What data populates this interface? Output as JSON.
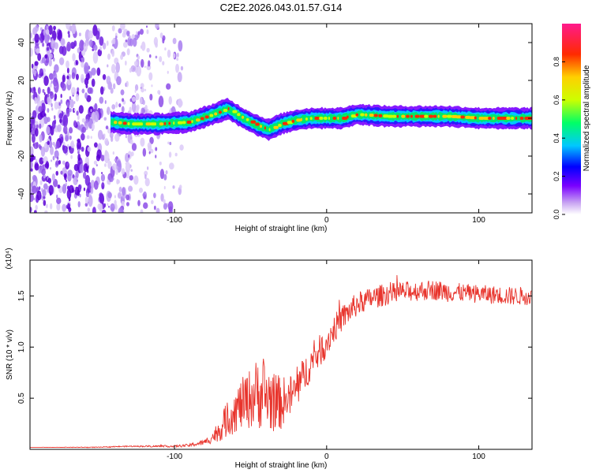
{
  "figure_title": "C2E2.2026.043.01.57.G14",
  "colorbar": {
    "label": "Normalized spectral amplitude",
    "ticks": [
      "0.0",
      "0.2",
      "0.4",
      "0.6",
      "0.8"
    ],
    "tick_values": [
      0.0,
      0.2,
      0.4,
      0.6,
      0.8
    ],
    "range": [
      0.0,
      1.0
    ]
  },
  "chart_data": [
    {
      "type": "heatmap",
      "title": "",
      "xlabel": "Height of straight line (km)",
      "ylabel": "Frequency (Hz)",
      "xlim": [
        -195,
        135
      ],
      "ylim": [
        -50,
        50
      ],
      "x_ticks": [
        "-100",
        "0",
        "100"
      ],
      "x_tick_values": [
        -100,
        0,
        100
      ],
      "y_ticks": [
        "-40",
        "-20",
        "0",
        "20",
        "40"
      ],
      "y_tick_values": [
        -40,
        -20,
        0,
        20,
        40
      ],
      "ridge": {
        "description_units": "frequency (Hz) of dominant band vs height (km)",
        "x": [
          -142,
          -130,
          -110,
          -90,
          -75,
          -65,
          -55,
          -45,
          -38,
          -30,
          -20,
          -10,
          0,
          10,
          20,
          40,
          60,
          80,
          100,
          120,
          135
        ],
        "y": [
          -2,
          -3,
          -3,
          -2,
          2,
          5,
          0,
          -4,
          -6,
          -3,
          -1,
          0,
          0,
          0,
          2,
          1,
          1,
          1,
          0,
          0,
          0
        ]
      },
      "noise_region_x": [
        -195,
        -95
      ]
    },
    {
      "type": "line",
      "title": "",
      "xlabel": "Height of straight line (km)",
      "ylabel": "SNR (10 * v/v)",
      "y_multiplier": "(x10⁴)",
      "xlim": [
        -195,
        135
      ],
      "ylim": [
        0,
        1.85
      ],
      "x_ticks": [
        "-100",
        "0",
        "100"
      ],
      "x_tick_values": [
        -100,
        0,
        100
      ],
      "y_ticks": [
        "0.5",
        "1.0",
        "1.5"
      ],
      "y_tick_values": [
        0.5,
        1.0,
        1.5
      ],
      "series": [
        {
          "name": "SNR",
          "color": "#e8342c",
          "x": [
            -195,
            -150,
            -130,
            -100,
            -90,
            -80,
            -75,
            -70,
            -65,
            -60,
            -55,
            -50,
            -45,
            -40,
            -35,
            -30,
            -25,
            -20,
            -15,
            -10,
            -5,
            0,
            5,
            10,
            15,
            20,
            25,
            30,
            35,
            40,
            45,
            50,
            60,
            70,
            80,
            90,
            100,
            110,
            120,
            135
          ],
          "y": [
            0.02,
            0.02,
            0.03,
            0.03,
            0.04,
            0.07,
            0.12,
            0.2,
            0.3,
            0.38,
            0.45,
            0.5,
            0.56,
            0.52,
            0.47,
            0.45,
            0.5,
            0.58,
            0.72,
            0.85,
            0.95,
            1.05,
            1.18,
            1.28,
            1.35,
            1.42,
            1.45,
            1.48,
            1.5,
            1.52,
            1.53,
            1.54,
            1.55,
            1.56,
            1.54,
            1.53,
            1.52,
            1.51,
            1.5,
            1.5
          ],
          "fluct": [
            0.0,
            0.004,
            0.006,
            0.01,
            0.015,
            0.03,
            0.06,
            0.12,
            0.18,
            0.22,
            0.26,
            0.3,
            0.35,
            0.38,
            0.3,
            0.26,
            0.22,
            0.2,
            0.18,
            0.16,
            0.16,
            0.15,
            0.14,
            0.13,
            0.12,
            0.12,
            0.11,
            0.11,
            0.11,
            0.11,
            0.1,
            0.1,
            0.1,
            0.1,
            0.1,
            0.09,
            0.09,
            0.09,
            0.09,
            0.09
          ]
        }
      ]
    }
  ]
}
